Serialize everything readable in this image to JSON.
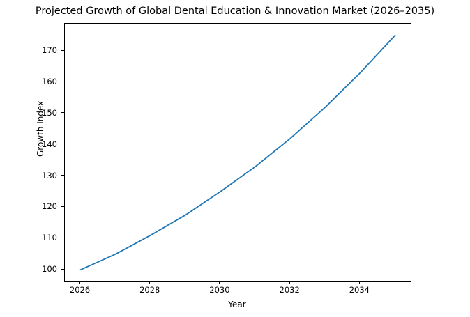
{
  "chart_data": {
    "type": "line",
    "title": "Projected Growth of Global Dental Education & Innovation Market (2026–2035)",
    "xlabel": "Year",
    "ylabel": "Growth Index",
    "x": [
      2026,
      2027,
      2028,
      2029,
      2030,
      2031,
      2032,
      2033,
      2034,
      2035
    ],
    "series": [
      {
        "name": "Growth Index",
        "values": [
          100,
          105,
          111,
          117.5,
          125,
          133,
          142,
          152,
          163,
          175
        ],
        "color": "#1f77b4"
      }
    ],
    "xticks": [
      2026,
      2028,
      2030,
      2032,
      2034
    ],
    "yticks": [
      100,
      110,
      120,
      130,
      140,
      150,
      160,
      170
    ],
    "xlim": [
      2025.55,
      2035.45
    ],
    "ylim": [
      96.25,
      178.75
    ],
    "grid": false,
    "legend": "none"
  }
}
